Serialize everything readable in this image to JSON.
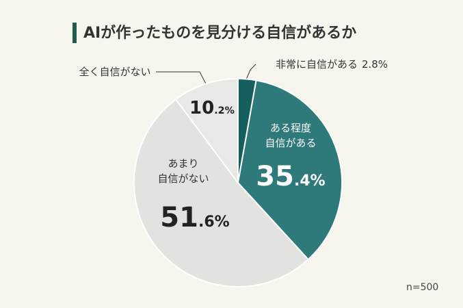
{
  "chart_data": {
    "type": "pie",
    "title": "AIが作ったものを見分ける自信があるか",
    "categories": [
      "非常に自信がある",
      "ある程度\n自信がある",
      "あまり\n自信がない",
      "全く自信がない"
    ],
    "values": [
      2.8,
      35.4,
      51.6,
      10.2
    ],
    "value_labels": [
      "2.8%",
      "35.4%",
      "51.6%",
      "10.2%"
    ],
    "colors": [
      "#165f5f",
      "#2e7a7a",
      "#e2e2df",
      "#e8e8e5"
    ],
    "note": "n=500"
  }
}
